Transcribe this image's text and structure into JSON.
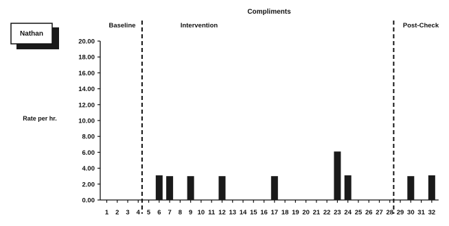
{
  "chart_data": {
    "type": "bar",
    "title": "Compliments",
    "xlabel": "",
    "ylabel": "Rate per hr.",
    "name_label": "Nathan",
    "ylim": [
      0,
      20
    ],
    "y_ticks": [
      "0.00",
      "2.00",
      "4.00",
      "6.00",
      "8.00",
      "10.00",
      "12.00",
      "14.00",
      "16.00",
      "18.00",
      "20.00"
    ],
    "categories": [
      "1",
      "2",
      "3",
      "4",
      "5",
      "6",
      "7",
      "8",
      "9",
      "10",
      "11",
      "12",
      "13",
      "14",
      "15",
      "16",
      "17",
      "18",
      "19",
      "20",
      "21",
      "22",
      "23",
      "24",
      "25",
      "26",
      "27",
      "28",
      "29",
      "30",
      "31",
      "32"
    ],
    "values": [
      0,
      0,
      0,
      0,
      0,
      3.1,
      3.0,
      0,
      3.0,
      0,
      0,
      3.0,
      0,
      0,
      0,
      0,
      3.0,
      0,
      0,
      0,
      0,
      0,
      6.1,
      3.1,
      0,
      0,
      0,
      0,
      0,
      3.0,
      0,
      3.1
    ],
    "phases": [
      {
        "label": "Baseline",
        "start": 1,
        "end": 4
      },
      {
        "label": "Intervention",
        "start": 5,
        "end": 28
      },
      {
        "label": "Post-Check",
        "start": 29,
        "end": 32
      }
    ],
    "phase_change_after": [
      4,
      28
    ],
    "colors": {
      "bar": "#1a1a1a",
      "axis": "#111111"
    }
  }
}
